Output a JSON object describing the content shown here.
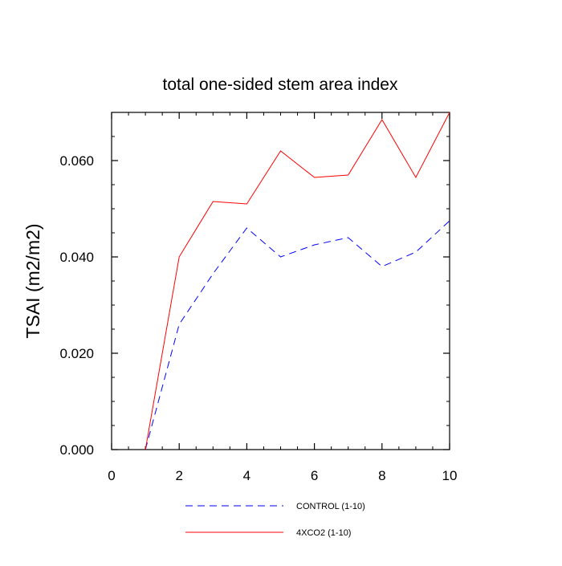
{
  "chart_data": {
    "type": "line",
    "title": "total one-sided stem area index",
    "xlabel": "",
    "ylabel": "TSAI  (m2/m2)",
    "xlim": [
      0,
      10
    ],
    "ylim": [
      0,
      0.07
    ],
    "x_ticks": [
      0,
      2,
      4,
      6,
      8,
      10
    ],
    "x_tick_labels": [
      "0",
      "2",
      "4",
      "6",
      "8",
      "10"
    ],
    "y_ticks": [
      0,
      0.02,
      0.04,
      0.06
    ],
    "y_tick_labels": [
      "0.000",
      "0.020",
      "0.040",
      "0.060"
    ],
    "grid": false,
    "legend_position": "bottom-center",
    "x": [
      1,
      2,
      3,
      4,
      5,
      6,
      7,
      8,
      9,
      10
    ],
    "series": [
      {
        "name": "CONTROL (1-10)",
        "color": "#0000ff",
        "dash": "dashed",
        "values": [
          0.0,
          0.026,
          0.0365,
          0.046,
          0.04,
          0.0425,
          0.044,
          0.038,
          0.041,
          0.0475
        ]
      },
      {
        "name": "4XCO2 (1-10)",
        "color": "#ff0000",
        "dash": "solid",
        "values": [
          0.0,
          0.04,
          0.0515,
          0.051,
          0.062,
          0.0565,
          0.057,
          0.0685,
          0.0565,
          0.07
        ]
      }
    ]
  }
}
